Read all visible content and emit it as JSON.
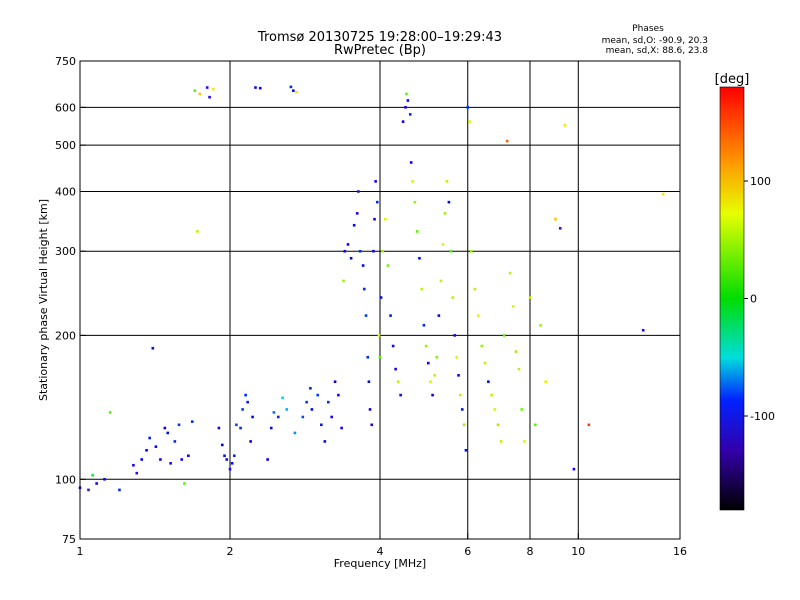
{
  "chart_data": {
    "type": "scatter",
    "title": "Tromsø 20130725 19:28:00–19:29:43",
    "subtitle": "RwPretec (Bp)",
    "stats": {
      "heading": "Phases",
      "line1": "mean, sd,O: -90.9, 20.3",
      "line2": "mean, sd,X:  88.6, 23.8"
    },
    "xlabel": "Frequency [MHz]",
    "ylabel": "Stationary phase Virtual Height [km]",
    "x_scale": "log",
    "y_scale": "log",
    "xlim": [
      1,
      16
    ],
    "ylim": [
      75,
      750
    ],
    "grid": true,
    "x_ticks": [
      1,
      2,
      4,
      6,
      8,
      10,
      16
    ],
    "x_tick_labels": [
      "1",
      "2",
      "4",
      "6",
      "8",
      "10",
      "16"
    ],
    "y_ticks": [
      75,
      100,
      200,
      300,
      400,
      500,
      600,
      750
    ],
    "y_tick_labels": [
      "75",
      "100",
      "200",
      "300",
      "400",
      "500",
      "600",
      "750"
    ],
    "x_grid": [
      2,
      4,
      6,
      8,
      10
    ],
    "y_grid": [
      100,
      200,
      300,
      400,
      500,
      600
    ],
    "colorbar": {
      "label": "[deg]",
      "min": -180,
      "max": 180,
      "ticks": [
        100,
        0,
        -100
      ],
      "tick_labels": [
        "100",
        "0",
        "-100"
      ]
    },
    "series_colors": {
      "o_mode": "#1f2ee6",
      "x_mode": "#d8e62a"
    },
    "points": [
      [
        1.0,
        96,
        -120
      ],
      [
        1.04,
        95,
        -140
      ],
      [
        1.08,
        98,
        -120
      ],
      [
        1.12,
        100,
        -110
      ],
      [
        1.06,
        102,
        20
      ],
      [
        1.15,
        138,
        60
      ],
      [
        1.2,
        95,
        -100
      ],
      [
        1.28,
        107,
        -120
      ],
      [
        1.3,
        103,
        -130
      ],
      [
        1.33,
        110,
        -110
      ],
      [
        1.36,
        115,
        -115
      ],
      [
        1.38,
        122,
        -105
      ],
      [
        1.4,
        188,
        -110
      ],
      [
        1.42,
        117,
        -110
      ],
      [
        1.45,
        110,
        -120
      ],
      [
        1.48,
        128,
        -115
      ],
      [
        1.5,
        125,
        -110
      ],
      [
        1.52,
        108,
        -125
      ],
      [
        1.55,
        120,
        -100
      ],
      [
        1.58,
        130,
        -95
      ],
      [
        1.6,
        110,
        -120
      ],
      [
        1.62,
        98,
        60
      ],
      [
        1.65,
        112,
        -110
      ],
      [
        1.68,
        132,
        -100
      ],
      [
        1.7,
        650,
        60
      ],
      [
        1.72,
        330,
        90
      ],
      [
        1.74,
        640,
        120
      ],
      [
        1.8,
        660,
        -130
      ],
      [
        1.82,
        630,
        -125
      ],
      [
        1.85,
        655,
        100
      ],
      [
        1.9,
        128,
        -110
      ],
      [
        1.93,
        118,
        -115
      ],
      [
        1.95,
        112,
        -110
      ],
      [
        1.97,
        110,
        -120
      ],
      [
        2.0,
        105,
        -125
      ],
      [
        2.02,
        108,
        -110
      ],
      [
        2.04,
        112,
        -100
      ],
      [
        2.06,
        130,
        -90
      ],
      [
        2.1,
        128,
        -100
      ],
      [
        2.12,
        140,
        -95
      ],
      [
        2.15,
        150,
        -100
      ],
      [
        2.17,
        145,
        -105
      ],
      [
        2.2,
        120,
        -115
      ],
      [
        2.22,
        135,
        -110
      ],
      [
        2.25,
        660,
        -110
      ],
      [
        2.3,
        658,
        -120
      ],
      [
        2.38,
        110,
        -115
      ],
      [
        2.42,
        128,
        -110
      ],
      [
        2.45,
        138,
        -80
      ],
      [
        2.5,
        135,
        -100
      ],
      [
        2.55,
        148,
        -50
      ],
      [
        2.6,
        140,
        -60
      ],
      [
        2.65,
        662,
        -100
      ],
      [
        2.68,
        650,
        -110
      ],
      [
        2.72,
        645,
        110
      ],
      [
        2.7,
        125,
        -70
      ],
      [
        2.8,
        135,
        -90
      ],
      [
        2.85,
        145,
        -95
      ],
      [
        2.9,
        155,
        -100
      ],
      [
        2.92,
        140,
        -110
      ],
      [
        3.0,
        150,
        -95
      ],
      [
        3.05,
        130,
        -105
      ],
      [
        3.1,
        120,
        -110
      ],
      [
        3.15,
        145,
        -100
      ],
      [
        3.2,
        135,
        -120
      ],
      [
        3.25,
        160,
        -115
      ],
      [
        3.3,
        150,
        -110
      ],
      [
        3.35,
        128,
        -120
      ],
      [
        3.38,
        260,
        80
      ],
      [
        3.4,
        300,
        -110
      ],
      [
        3.45,
        310,
        -120
      ],
      [
        3.5,
        290,
        -115
      ],
      [
        3.55,
        340,
        -110
      ],
      [
        3.6,
        360,
        -120
      ],
      [
        3.62,
        400,
        -130
      ],
      [
        3.65,
        300,
        -100
      ],
      [
        3.7,
        280,
        -110
      ],
      [
        3.72,
        250,
        -100
      ],
      [
        3.75,
        220,
        -95
      ],
      [
        3.78,
        180,
        -100
      ],
      [
        3.8,
        160,
        -110
      ],
      [
        3.82,
        140,
        -115
      ],
      [
        3.85,
        130,
        -120
      ],
      [
        3.88,
        300,
        -115
      ],
      [
        3.9,
        350,
        -110
      ],
      [
        3.92,
        420,
        -120
      ],
      [
        3.95,
        380,
        -100
      ],
      [
        3.98,
        200,
        90
      ],
      [
        4.0,
        180,
        60
      ],
      [
        4.02,
        240,
        -110
      ],
      [
        4.05,
        300,
        80
      ],
      [
        4.1,
        350,
        100
      ],
      [
        4.15,
        280,
        70
      ],
      [
        4.2,
        220,
        -105
      ],
      [
        4.25,
        190,
        -110
      ],
      [
        4.3,
        170,
        -120
      ],
      [
        4.35,
        160,
        90
      ],
      [
        4.4,
        150,
        -110
      ],
      [
        4.45,
        560,
        -115
      ],
      [
        4.5,
        600,
        -120
      ],
      [
        4.52,
        640,
        60
      ],
      [
        4.55,
        620,
        -110
      ],
      [
        4.6,
        580,
        -100
      ],
      [
        4.62,
        460,
        -110
      ],
      [
        4.65,
        420,
        100
      ],
      [
        4.7,
        380,
        80
      ],
      [
        4.75,
        330,
        60
      ],
      [
        4.8,
        290,
        -110
      ],
      [
        4.85,
        250,
        90
      ],
      [
        4.9,
        210,
        -100
      ],
      [
        4.95,
        190,
        80
      ],
      [
        5.0,
        175,
        -110
      ],
      [
        5.05,
        160,
        100
      ],
      [
        5.1,
        150,
        -115
      ],
      [
        5.15,
        165,
        90
      ],
      [
        5.2,
        180,
        70
      ],
      [
        5.25,
        220,
        -110
      ],
      [
        5.3,
        260,
        90
      ],
      [
        5.35,
        310,
        100
      ],
      [
        5.4,
        360,
        80
      ],
      [
        5.45,
        420,
        90
      ],
      [
        5.5,
        380,
        -110
      ],
      [
        5.55,
        300,
        60
      ],
      [
        5.6,
        240,
        90
      ],
      [
        5.65,
        200,
        -120
      ],
      [
        5.7,
        180,
        100
      ],
      [
        5.75,
        165,
        -110
      ],
      [
        5.8,
        150,
        90
      ],
      [
        5.85,
        140,
        -105
      ],
      [
        5.9,
        130,
        80
      ],
      [
        5.95,
        115,
        -110
      ],
      [
        6.0,
        600,
        -100
      ],
      [
        6.05,
        560,
        100
      ],
      [
        6.1,
        300,
        80
      ],
      [
        6.2,
        250,
        90
      ],
      [
        6.3,
        220,
        100
      ],
      [
        6.4,
        190,
        80
      ],
      [
        6.5,
        175,
        90
      ],
      [
        6.6,
        160,
        -110
      ],
      [
        6.7,
        150,
        90
      ],
      [
        6.8,
        140,
        100
      ],
      [
        6.9,
        130,
        80
      ],
      [
        7.0,
        120,
        90
      ],
      [
        7.1,
        200,
        60
      ],
      [
        7.2,
        510,
        150
      ],
      [
        7.3,
        270,
        90
      ],
      [
        7.4,
        230,
        100
      ],
      [
        7.5,
        185,
        80
      ],
      [
        7.6,
        170,
        90
      ],
      [
        7.7,
        140,
        70
      ],
      [
        7.8,
        120,
        100
      ],
      [
        8.0,
        240,
        90
      ],
      [
        8.2,
        130,
        60
      ],
      [
        8.4,
        210,
        80
      ],
      [
        8.6,
        160,
        100
      ],
      [
        9.0,
        350,
        120
      ],
      [
        9.2,
        335,
        -140
      ],
      [
        9.4,
        550,
        110
      ],
      [
        9.8,
        105,
        -120
      ],
      [
        10.5,
        130,
        160
      ],
      [
        13.5,
        205,
        -125
      ],
      [
        14.8,
        395,
        110
      ]
    ]
  }
}
